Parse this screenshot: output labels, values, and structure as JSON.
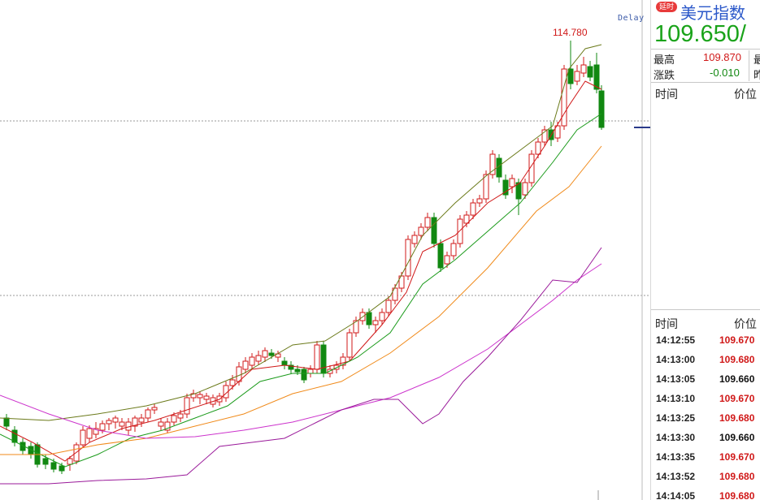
{
  "chart": {
    "delay_label": "Delay",
    "max_label": "114.780",
    "colors": {
      "up": "#d01818",
      "down": "#118811",
      "ma_dark_green": "#6b7a1a",
      "ma_red": "#d01818",
      "ma_green": "#1a9a1a",
      "ma_orange": "#f08a1a",
      "ma_magenta": "#cc33cc",
      "ma_purple": "#9a1a9a"
    }
  },
  "quote": {
    "delay_badge": "延时",
    "name": "美元指数",
    "price": "109.650/",
    "high_label": "最高",
    "high_value": "109.870",
    "change_label": "涨跌",
    "change_value": "-0.010",
    "col2_label_a": "最",
    "col2_label_b": "昨"
  },
  "ticks_top": {
    "time_header": "时间",
    "price_header": "价位"
  },
  "ticks": {
    "time_header": "时间",
    "price_header": "价位",
    "rows": [
      {
        "time": "14:12:55",
        "price": "109.670",
        "color": "#d01818"
      },
      {
        "time": "14:13:00",
        "price": "109.680",
        "color": "#d01818"
      },
      {
        "time": "14:13:05",
        "price": "109.660",
        "color": "#111111"
      },
      {
        "time": "14:13:10",
        "price": "109.670",
        "color": "#d01818"
      },
      {
        "time": "14:13:25",
        "price": "109.680",
        "color": "#d01818"
      },
      {
        "time": "14:13:30",
        "price": "109.660",
        "color": "#111111"
      },
      {
        "time": "14:13:35",
        "price": "109.670",
        "color": "#d01818"
      },
      {
        "time": "14:13:52",
        "price": "109.680",
        "color": "#d01818"
      },
      {
        "time": "14:14:05",
        "price": "109.680",
        "color": "#d01818"
      }
    ]
  }
}
